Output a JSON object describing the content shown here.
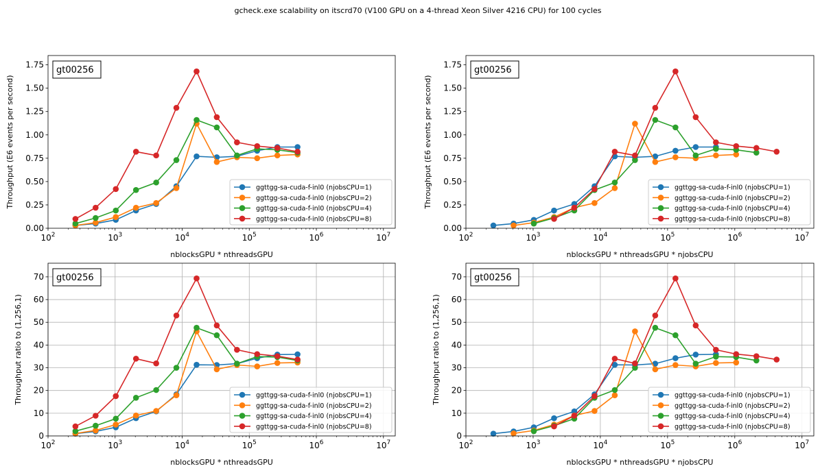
{
  "figure_title": "gcheck.exe scalability on itscrd70 (V100 GPU on a 4-thread Xeon Silver 4216 CPU) for 100 cycles",
  "colors": {
    "njobsCPU=1": "#1f77b4",
    "njobsCPU=2": "#ff7f0e",
    "njobsCPU=4": "#2ca02c",
    "njobsCPU=8": "#d62728",
    "grid": "#b0b0b0"
  },
  "chart_data": [
    {
      "type": "line",
      "panel": "top-left",
      "annotation": "gt00256",
      "xlabel": "nblocksGPU * nthreadsGPU",
      "ylabel": "Throughput (E6 events per second)",
      "xscale": "log",
      "xlim": [
        100,
        15000000
      ],
      "ylim": [
        0,
        1.85
      ],
      "x_ticks": [
        100,
        1000,
        10000,
        100000,
        1000000,
        10000000
      ],
      "x_tick_labels": [
        "10^2",
        "10^3",
        "10^4",
        "10^5",
        "10^6",
        "10^7"
      ],
      "y_ticks": [
        0,
        0.25,
        0.5,
        0.75,
        1.0,
        1.25,
        1.5,
        1.75
      ],
      "y_tick_labels": [
        "0.00",
        "0.25",
        "0.50",
        "0.75",
        "1.00",
        "1.25",
        "1.50",
        "1.75"
      ],
      "grid": false,
      "legend": "lower-right",
      "series": [
        {
          "name": "ggttgg-sa-cuda-f-inl0 (njobsCPU=1)",
          "x": [
            256,
            512,
            1024,
            2048,
            4096,
            8192,
            16384,
            32768,
            65536,
            131072,
            262144,
            524288
          ],
          "y": [
            0.03,
            0.05,
            0.09,
            0.19,
            0.26,
            0.45,
            0.77,
            0.76,
            0.77,
            0.83,
            0.87,
            0.87
          ]
        },
        {
          "name": "ggttgg-sa-cuda-f-inl0 (njobsCPU=2)",
          "x": [
            256,
            512,
            1024,
            2048,
            4096,
            8192,
            16384,
            32768,
            65536,
            131072,
            262144,
            524288
          ],
          "y": [
            0.03,
            0.06,
            0.12,
            0.22,
            0.27,
            0.43,
            1.12,
            0.71,
            0.76,
            0.75,
            0.78,
            0.79
          ]
        },
        {
          "name": "ggttgg-sa-cuda-f-inl0 (njobsCPU=4)",
          "x": [
            256,
            512,
            1024,
            2048,
            4096,
            8192,
            16384,
            32768,
            65536,
            131072,
            262144,
            524288
          ],
          "y": [
            0.05,
            0.11,
            0.19,
            0.41,
            0.49,
            0.73,
            1.16,
            1.08,
            0.78,
            0.85,
            0.84,
            0.81
          ]
        },
        {
          "name": "ggttgg-sa-cuda-f-inl0 (njobsCPU=8)",
          "x": [
            256,
            512,
            1024,
            2048,
            4096,
            8192,
            16384,
            32768,
            65536,
            131072,
            262144,
            524288
          ],
          "y": [
            0.1,
            0.22,
            0.42,
            0.82,
            0.78,
            1.29,
            1.68,
            1.19,
            0.92,
            0.88,
            0.86,
            0.82
          ]
        }
      ]
    },
    {
      "type": "line",
      "panel": "top-right",
      "annotation": "gt00256",
      "xlabel": "nblocksGPU * nthreadsGPU * njobsCPU",
      "ylabel": "Throughput (E6 events per second)",
      "xscale": "log",
      "xlim": [
        100,
        15000000
      ],
      "ylim": [
        0,
        1.85
      ],
      "x_ticks": [
        100,
        1000,
        10000,
        100000,
        1000000,
        10000000
      ],
      "x_tick_labels": [
        "10^2",
        "10^3",
        "10^4",
        "10^5",
        "10^6",
        "10^7"
      ],
      "y_ticks": [
        0,
        0.25,
        0.5,
        0.75,
        1.0,
        1.25,
        1.5,
        1.75
      ],
      "y_tick_labels": [
        "0.00",
        "0.25",
        "0.50",
        "0.75",
        "1.00",
        "1.25",
        "1.50",
        "1.75"
      ],
      "grid": false,
      "legend": "lower-right",
      "series": [
        {
          "name": "ggttgg-sa-cuda-f-inl0 (njobsCPU=1)",
          "x": [
            256,
            512,
            1024,
            2048,
            4096,
            8192,
            16384,
            32768,
            65536,
            131072,
            262144,
            524288
          ],
          "y": [
            0.03,
            0.05,
            0.09,
            0.19,
            0.26,
            0.45,
            0.77,
            0.76,
            0.77,
            0.83,
            0.87,
            0.87
          ]
        },
        {
          "name": "ggttgg-sa-cuda-f-inl0 (njobsCPU=2)",
          "x": [
            512,
            1024,
            2048,
            4096,
            8192,
            16384,
            32768,
            65536,
            131072,
            262144,
            524288,
            1048576
          ],
          "y": [
            0.03,
            0.06,
            0.12,
            0.22,
            0.27,
            0.43,
            1.12,
            0.71,
            0.76,
            0.75,
            0.78,
            0.79
          ]
        },
        {
          "name": "ggttgg-sa-cuda-f-inl0 (njobsCPU=4)",
          "x": [
            1024,
            2048,
            4096,
            8192,
            16384,
            32768,
            65536,
            131072,
            262144,
            524288,
            1048576,
            2097152
          ],
          "y": [
            0.05,
            0.11,
            0.19,
            0.41,
            0.49,
            0.73,
            1.16,
            1.08,
            0.78,
            0.85,
            0.84,
            0.81
          ]
        },
        {
          "name": "ggttgg-sa-cuda-f-inl0 (njobsCPU=8)",
          "x": [
            2048,
            4096,
            8192,
            16384,
            32768,
            65536,
            131072,
            262144,
            524288,
            1048576,
            2097152,
            4194304
          ],
          "y": [
            0.1,
            0.22,
            0.42,
            0.82,
            0.78,
            1.29,
            1.68,
            1.19,
            0.92,
            0.88,
            0.86,
            0.82
          ]
        }
      ]
    },
    {
      "type": "line",
      "panel": "bottom-left",
      "annotation": "gt00256",
      "xlabel": "nblocksGPU * nthreadsGPU",
      "ylabel": "Throughput ratio to (1,256,1)",
      "xscale": "log",
      "xlim": [
        100,
        15000000
      ],
      "ylim": [
        0,
        76
      ],
      "x_ticks": [
        100,
        1000,
        10000,
        100000,
        1000000,
        10000000
      ],
      "x_tick_labels": [
        "10^2",
        "10^3",
        "10^4",
        "10^5",
        "10^6",
        "10^7"
      ],
      "y_ticks": [
        0,
        10,
        20,
        30,
        40,
        50,
        60,
        70
      ],
      "y_tick_labels": [
        "0",
        "10",
        "20",
        "30",
        "40",
        "50",
        "60",
        "70"
      ],
      "grid": true,
      "legend": "lower-right",
      "series": [
        {
          "name": "ggttgg-sa-cuda-f-inl0 (njobsCPU=1)",
          "x": [
            256,
            512,
            1024,
            2048,
            4096,
            8192,
            16384,
            32768,
            65536,
            131072,
            262144,
            524288
          ],
          "y": [
            1.0,
            2.0,
            3.8,
            7.8,
            10.8,
            18.3,
            31.3,
            31.2,
            31.8,
            34.2,
            35.8,
            35.9
          ]
        },
        {
          "name": "ggttgg-sa-cuda-f-inl0 (njobsCPU=2)",
          "x": [
            256,
            512,
            1024,
            2048,
            4096,
            8192,
            16384,
            32768,
            65536,
            131072,
            262144,
            524288
          ],
          "y": [
            1.1,
            2.4,
            5.0,
            9.0,
            11.0,
            17.9,
            46.0,
            29.3,
            31.2,
            30.6,
            32.1,
            32.3
          ]
        },
        {
          "name": "ggttgg-sa-cuda-f-inl0 (njobsCPU=4)",
          "x": [
            256,
            512,
            1024,
            2048,
            4096,
            8192,
            16384,
            32768,
            65536,
            131072,
            262144,
            524288
          ],
          "y": [
            2.1,
            4.5,
            7.6,
            16.8,
            20.2,
            30.0,
            47.6,
            44.3,
            31.8,
            34.9,
            34.7,
            33.2
          ]
        },
        {
          "name": "ggttgg-sa-cuda-f-inl0 (njobsCPU=8)",
          "x": [
            256,
            512,
            1024,
            2048,
            4096,
            8192,
            16384,
            32768,
            65536,
            131072,
            262144,
            524288
          ],
          "y": [
            4.2,
            8.9,
            17.5,
            34.0,
            31.9,
            53.0,
            69.3,
            48.6,
            37.9,
            36.0,
            35.1,
            33.6
          ]
        }
      ]
    },
    {
      "type": "line",
      "panel": "bottom-right",
      "annotation": "gt00256",
      "xlabel": "nblocksGPU * nthreadsGPU * njobsCPU",
      "ylabel": "Throughput ratio to (1,256,1)",
      "xscale": "log",
      "xlim": [
        100,
        15000000
      ],
      "ylim": [
        0,
        76
      ],
      "x_ticks": [
        100,
        1000,
        10000,
        100000,
        1000000,
        10000000
      ],
      "x_tick_labels": [
        "10^2",
        "10^3",
        "10^4",
        "10^5",
        "10^6",
        "10^7"
      ],
      "y_ticks": [
        0,
        10,
        20,
        30,
        40,
        50,
        60,
        70
      ],
      "y_tick_labels": [
        "0",
        "10",
        "20",
        "30",
        "40",
        "50",
        "60",
        "70"
      ],
      "grid": true,
      "legend": "lower-right",
      "series": [
        {
          "name": "ggttgg-sa-cuda-f-inl0 (njobsCPU=1)",
          "x": [
            256,
            512,
            1024,
            2048,
            4096,
            8192,
            16384,
            32768,
            65536,
            131072,
            262144,
            524288
          ],
          "y": [
            1.0,
            2.0,
            3.8,
            7.8,
            10.8,
            18.3,
            31.3,
            31.2,
            31.8,
            34.2,
            35.8,
            35.9
          ]
        },
        {
          "name": "ggttgg-sa-cuda-f-inl0 (njobsCPU=2)",
          "x": [
            512,
            1024,
            2048,
            4096,
            8192,
            16384,
            32768,
            65536,
            131072,
            262144,
            524288,
            1048576
          ],
          "y": [
            1.1,
            2.4,
            5.0,
            9.0,
            11.0,
            17.9,
            46.0,
            29.3,
            31.2,
            30.6,
            32.1,
            32.3
          ]
        },
        {
          "name": "ggttgg-sa-cuda-f-inl0 (njobsCPU=4)",
          "x": [
            1024,
            2048,
            4096,
            8192,
            16384,
            32768,
            65536,
            131072,
            262144,
            524288,
            1048576,
            2097152
          ],
          "y": [
            2.1,
            4.5,
            7.6,
            16.8,
            20.2,
            30.0,
            47.6,
            44.3,
            31.8,
            34.9,
            34.7,
            33.2
          ]
        },
        {
          "name": "ggttgg-sa-cuda-f-inl0 (njobsCPU=8)",
          "x": [
            2048,
            4096,
            8192,
            16384,
            32768,
            65536,
            131072,
            262144,
            524288,
            1048576,
            2097152,
            4194304
          ],
          "y": [
            4.2,
            8.9,
            17.5,
            34.0,
            31.9,
            53.0,
            69.3,
            48.6,
            37.9,
            36.0,
            35.1,
            33.6
          ]
        }
      ]
    }
  ]
}
